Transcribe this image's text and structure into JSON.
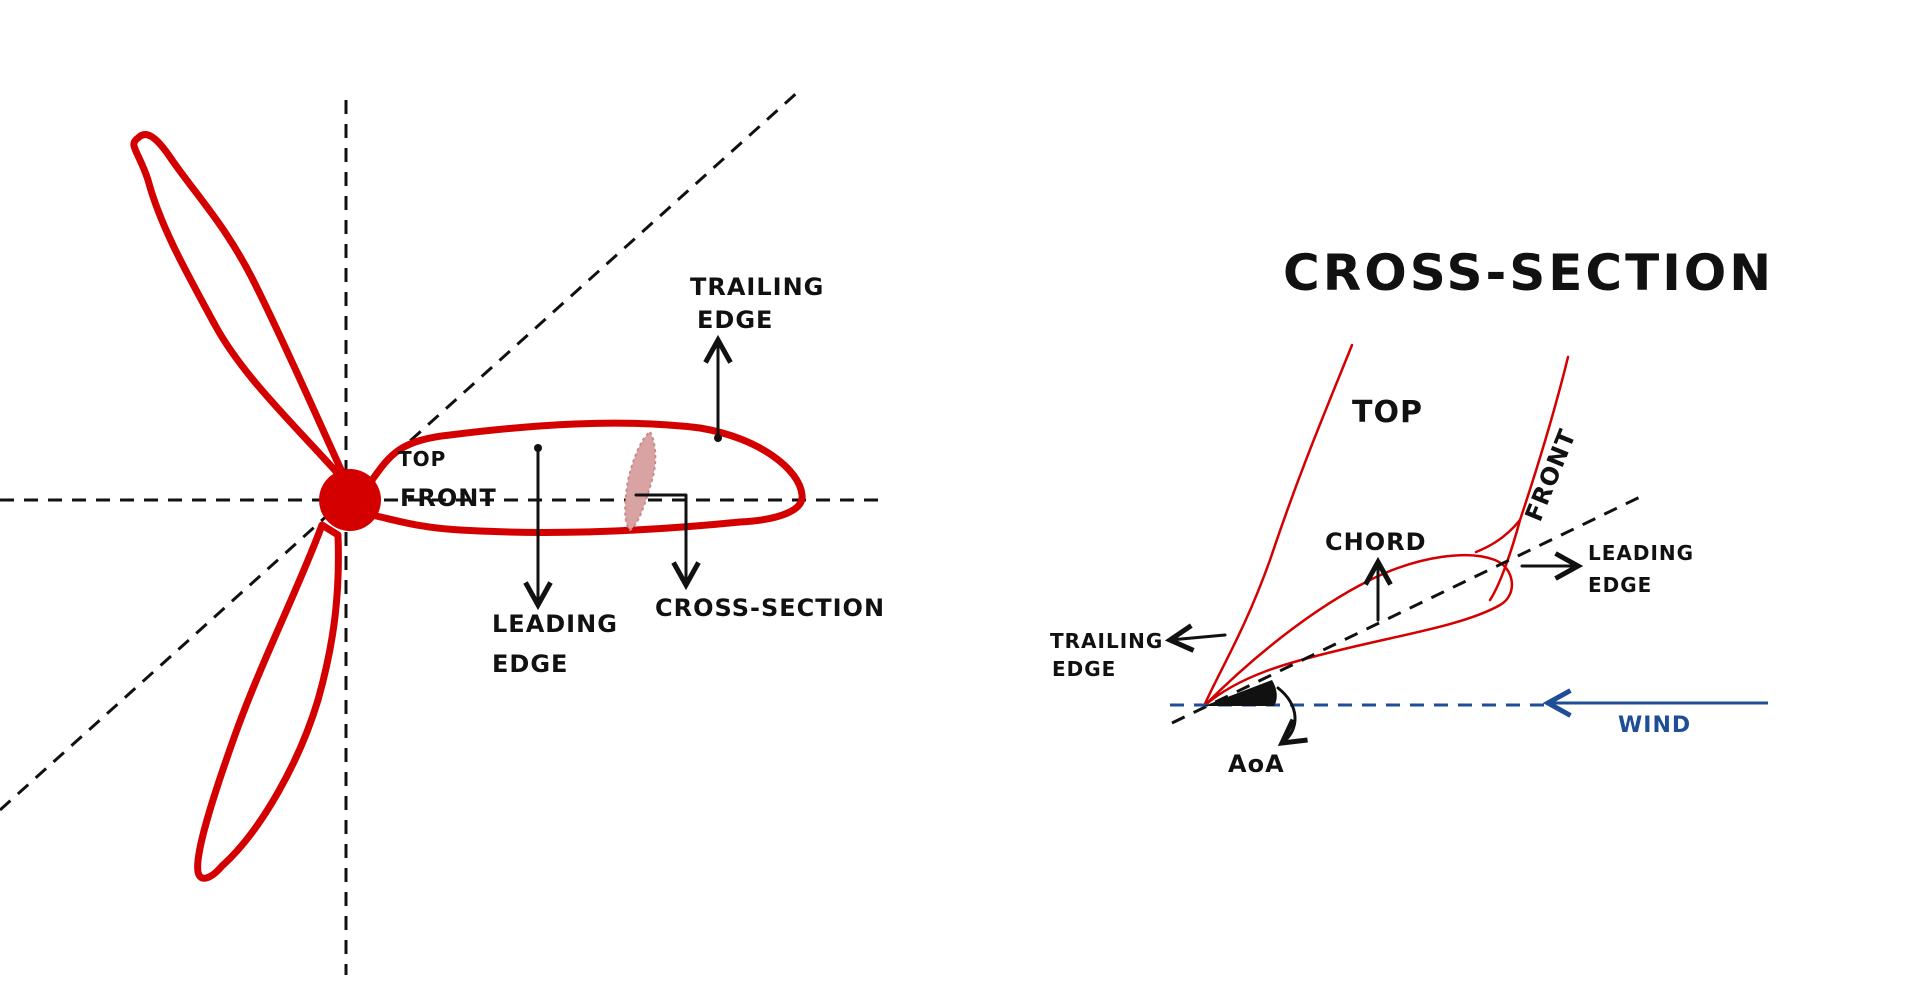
{
  "colors": {
    "blade_red": "#d40000",
    "hub_red": "#d40000",
    "cross_section_fill": "#d9a3a3",
    "line_black": "#111111",
    "wind_blue": "#1f4e96"
  },
  "left_diagram": {
    "labels": {
      "top": "TOP",
      "front": "FRONT",
      "trailing_edge_line1": "TRAILING",
      "trailing_edge_line2": "EDGE",
      "leading_edge_line1": "LEADING",
      "leading_edge_line2": "EDGE",
      "cross_section": "CROSS-SECTION"
    }
  },
  "right_diagram": {
    "title": "CROSS-SECTION",
    "labels": {
      "top": "TOP",
      "front": "FRONT",
      "chord": "CHORD",
      "leading_edge_line1": "LEADING",
      "leading_edge_line2": "EDGE",
      "trailing_edge_line1": "TRAILING",
      "trailing_edge_line2": "EDGE",
      "aoa": "AoA",
      "wind": "WIND"
    }
  }
}
